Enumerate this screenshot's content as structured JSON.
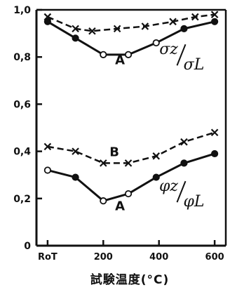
{
  "chart_data": {
    "type": "line",
    "title": "",
    "xlabel": "試験温度(°C)",
    "ylabel": "",
    "x_ticks": [
      "RoT",
      "200",
      "400",
      "600"
    ],
    "y_ticks": [
      "0",
      "0,2",
      "0,4",
      "0,6",
      "0,8",
      "1,0"
    ],
    "ylim": [
      0,
      1.0
    ],
    "xlim": [
      -40,
      640
    ],
    "grid": false,
    "series": [
      {
        "name": "σz/σL A",
        "label": "A",
        "marker": "filled-open-circle",
        "x": [
          0,
          100,
          200,
          290,
          390,
          490,
          600
        ],
        "y": [
          0.95,
          0.88,
          0.81,
          0.81,
          0.86,
          0.92,
          0.95
        ],
        "open_points": [
          200,
          290,
          390
        ]
      },
      {
        "name": "σz/σL B",
        "label": "B",
        "marker": "x",
        "dashed": true,
        "x": [
          0,
          100,
          160,
          250,
          350,
          450,
          530,
          600
        ],
        "y": [
          0.97,
          0.92,
          0.91,
          0.92,
          0.93,
          0.95,
          0.97,
          0.98
        ]
      },
      {
        "name": "φz/φL A",
        "label": "A",
        "marker": "filled-open-circle",
        "x": [
          0,
          100,
          200,
          290,
          390,
          490,
          600
        ],
        "y": [
          0.32,
          0.29,
          0.19,
          0.22,
          0.29,
          0.35,
          0.39
        ],
        "open_points": [
          0,
          200,
          290
        ]
      },
      {
        "name": "φz/φL B",
        "label": "B",
        "marker": "x",
        "dashed": true,
        "x": [
          0,
          100,
          200,
          290,
          390,
          490,
          600
        ],
        "y": [
          0.42,
          0.4,
          0.35,
          0.35,
          0.38,
          0.44,
          0.48
        ]
      }
    ],
    "annotations": [
      {
        "text": "A",
        "x": 260,
        "y": 0.77
      },
      {
        "text": "B",
        "x": 240,
        "y": 0.38
      },
      {
        "text": "A",
        "x": 260,
        "y": 0.15
      }
    ],
    "ratio_labels": [
      {
        "num": "σz",
        "den": "σL",
        "x": 470,
        "y": 0.8
      },
      {
        "num": "φz",
        "den": "φL",
        "x": 470,
        "y": 0.22
      }
    ]
  }
}
